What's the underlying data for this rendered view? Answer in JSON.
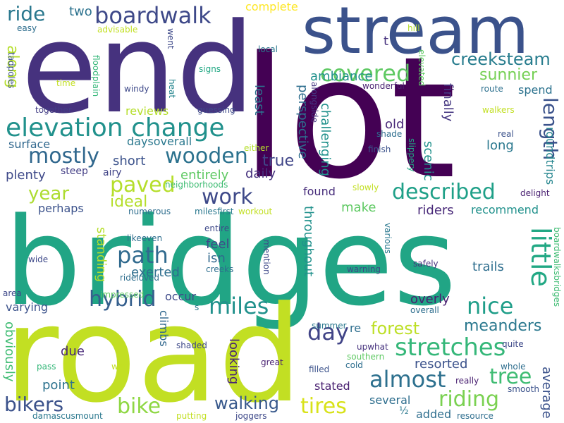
{
  "palette": {
    "c1": "#440154",
    "c2": "#482173",
    "c3": "#433e85",
    "c4": "#38588c",
    "c5": "#2d708e",
    "c6": "#25858e",
    "c7": "#1e9b8a",
    "c8": "#2ab07f",
    "c9": "#52c569",
    "c10": "#86d549",
    "c11": "#c2df23",
    "c12": "#fde725"
  },
  "words": [
    {
      "text": "bridges",
      "color": "#21a585"
    },
    {
      "text": "lot",
      "color": "#440154"
    },
    {
      "text": "road",
      "color": "#c2df23"
    },
    {
      "text": "end",
      "color": "#46327e"
    },
    {
      "text": "stream",
      "color": "#3b528b"
    },
    {
      "text": "elevation change",
      "color": "#21918c"
    },
    {
      "text": "boardwalk",
      "color": "#3e4989"
    },
    {
      "text": "covered",
      "color": "#5ec962"
    },
    {
      "text": "mostly",
      "color": "#31688e"
    },
    {
      "text": "wooden",
      "color": "#2c728e"
    },
    {
      "text": "ride",
      "color": "#2a788e"
    },
    {
      "text": "creeksteam",
      "color": "#287d8e"
    },
    {
      "text": "sunnier",
      "color": "#75d054"
    },
    {
      "text": "length",
      "color": "#3b528b"
    },
    {
      "text": "year",
      "color": "#addc30"
    },
    {
      "text": "paved",
      "color": "#b5de2b"
    },
    {
      "text": "work",
      "color": "#3e4989"
    },
    {
      "text": "described",
      "color": "#1fa088"
    },
    {
      "text": "ideal",
      "color": "#b5de2b"
    },
    {
      "text": "path",
      "color": "#306a8e"
    },
    {
      "text": "hybrid",
      "color": "#355f8d"
    },
    {
      "text": "miles",
      "color": "#21918c"
    },
    {
      "text": "nice",
      "color": "#1f9e89"
    },
    {
      "text": "little",
      "color": "#22a884"
    },
    {
      "text": "day",
      "color": "#414487"
    },
    {
      "text": "almost",
      "color": "#2d708e"
    },
    {
      "text": "stretches",
      "color": "#35b779"
    },
    {
      "text": "tree",
      "color": "#3fbc73"
    },
    {
      "text": "riding",
      "color": "#7ad151"
    },
    {
      "text": "tires",
      "color": "#d8e219"
    },
    {
      "text": "bike",
      "color": "#8fd744"
    },
    {
      "text": "bikers",
      "color": "#3b528b"
    },
    {
      "text": "walking",
      "color": "#38598c"
    },
    {
      "text": "forest",
      "color": "#bddf26"
    },
    {
      "text": "meanders",
      "color": "#2a788e"
    },
    {
      "text": "two",
      "color": "#2c728e"
    },
    {
      "text": "complete",
      "color": "#fde725"
    },
    {
      "text": "along",
      "color": "#b5de2b"
    },
    {
      "text": "true",
      "color": "#404688"
    },
    {
      "text": "ambiance",
      "color": "#21918c"
    },
    {
      "text": "daily",
      "color": "#46327e"
    },
    {
      "text": "least",
      "color": "#2c728e"
    },
    {
      "text": "perspective",
      "color": "#2e6e8e"
    },
    {
      "text": "challenging",
      "color": "#21918c"
    },
    {
      "text": "finally",
      "color": "#453781"
    },
    {
      "text": "scenic",
      "color": "#21918c"
    },
    {
      "text": "old",
      "color": "#482878"
    },
    {
      "text": "spend",
      "color": "#2c728e"
    },
    {
      "text": "long",
      "color": "#2a788e"
    },
    {
      "text": "roundtrips",
      "color": "#25858e"
    },
    {
      "text": "reviews",
      "color": "#b5de2b"
    },
    {
      "text": "daysoverall",
      "color": "#2a788e"
    },
    {
      "text": "surface",
      "color": "#31688e"
    },
    {
      "text": "short",
      "color": "#3b528b"
    },
    {
      "text": "entirely",
      "color": "#5ec962"
    },
    {
      "text": "plenty",
      "color": "#3e4989"
    },
    {
      "text": "steep",
      "color": "#433e85"
    },
    {
      "text": "airy",
      "color": "#414487"
    },
    {
      "text": "found",
      "color": "#472d7b"
    },
    {
      "text": "make",
      "color": "#5ec962"
    },
    {
      "text": "riders",
      "color": "#482878"
    },
    {
      "text": "recommend",
      "color": "#21918c"
    },
    {
      "text": "perhaps",
      "color": "#3b528b"
    },
    {
      "text": "exerted",
      "color": "#2e6e8e"
    },
    {
      "text": "standing",
      "color": "#b5de2b"
    },
    {
      "text": "feel",
      "color": "#3e4989"
    },
    {
      "text": "isn",
      "color": "#31688e"
    },
    {
      "text": "throughout",
      "color": "#21918c"
    },
    {
      "text": "overly",
      "color": "#481f70"
    },
    {
      "text": "trails",
      "color": "#2e6e8e"
    },
    {
      "text": "occur",
      "color": "#3e4989"
    },
    {
      "text": "varying",
      "color": "#3b528b"
    },
    {
      "text": "looking",
      "color": "#482475"
    },
    {
      "text": "re",
      "color": "#2e6e8e"
    },
    {
      "text": "obviously",
      "color": "#3fbc73"
    },
    {
      "text": "due",
      "color": "#482878"
    },
    {
      "text": "climbs",
      "color": "#31688e"
    },
    {
      "text": "point",
      "color": "#2c728e"
    },
    {
      "text": "stated",
      "color": "#481f70"
    },
    {
      "text": "resorted",
      "color": "#3b528b"
    },
    {
      "text": "several",
      "color": "#2e6e8e"
    },
    {
      "text": "average",
      "color": "#3b528b"
    },
    {
      "text": "added",
      "color": "#2e6e8e"
    },
    {
      "text": "easy",
      "color": "#2e6e8e"
    },
    {
      "text": "advisable",
      "color": "#c2df23"
    },
    {
      "text": "went",
      "color": "#3e4989"
    },
    {
      "text": "local",
      "color": "#2a788e"
    },
    {
      "text": "hill",
      "color": "#b5de2b"
    },
    {
      "text": "elevated",
      "color": "#5ec962"
    },
    {
      "text": "t",
      "color": "#46327e"
    },
    {
      "text": "tadpoles",
      "color": "#3b528b"
    },
    {
      "text": "time",
      "color": "#c2df23"
    },
    {
      "text": "floodplain",
      "color": "#35b779"
    },
    {
      "text": "windy",
      "color": "#3e4989"
    },
    {
      "text": "heat",
      "color": "#25858e"
    },
    {
      "text": "signs",
      "color": "#22a884"
    },
    {
      "text": "alongside",
      "color": "#453781"
    },
    {
      "text": "wonderful",
      "color": "#481f70"
    },
    {
      "text": "route",
      "color": "#2d708e"
    },
    {
      "text": "together",
      "color": "#433e85"
    },
    {
      "text": "guessing",
      "color": "#3e4989"
    },
    {
      "text": "walkers",
      "color": "#c2df23"
    },
    {
      "text": "real",
      "color": "#3b528b"
    },
    {
      "text": "shade",
      "color": "#2e6e8e"
    },
    {
      "text": "either",
      "color": "#b5de2b"
    },
    {
      "text": "finish",
      "color": "#3b528b"
    },
    {
      "text": "slippery",
      "color": "#22a884"
    },
    {
      "text": "neighborhoods",
      "color": "#3fbc73"
    },
    {
      "text": "slowly",
      "color": "#c2df23"
    },
    {
      "text": "delight",
      "color": "#481f70"
    },
    {
      "text": "numerous",
      "color": "#2e6e8e"
    },
    {
      "text": "milesfirst",
      "color": "#2a788e"
    },
    {
      "text": "workout",
      "color": "#c2df23"
    },
    {
      "text": "likeeven",
      "color": "#2e6e8e"
    },
    {
      "text": "entire",
      "color": "#3e4989"
    },
    {
      "text": "creeks",
      "color": "#2e6e8e"
    },
    {
      "text": "mention",
      "color": "#3e4989"
    },
    {
      "text": "various",
      "color": "#2a788e"
    },
    {
      "text": "wide",
      "color": "#3e4989"
    },
    {
      "text": "rideloved",
      "color": "#2e6e8e"
    },
    {
      "text": "warning",
      "color": "#3e4989"
    },
    {
      "text": "safely",
      "color": "#46327e"
    },
    {
      "text": "boardwalksbridges",
      "color": "#3fbc73"
    },
    {
      "text": "area",
      "color": "#3e4989"
    },
    {
      "text": "impressed",
      "color": "#5ec962"
    },
    {
      "text": "s",
      "color": "#2a788e"
    },
    {
      "text": "overall",
      "color": "#2e6e8e"
    },
    {
      "text": "summer",
      "color": "#2a788e"
    },
    {
      "text": "upwhat",
      "color": "#46327e"
    },
    {
      "text": "shaded",
      "color": "#3e4989"
    },
    {
      "text": "pass",
      "color": "#35b779"
    },
    {
      "text": "wet",
      "color": "#c2df23"
    },
    {
      "text": "great",
      "color": "#481f70"
    },
    {
      "text": "filled",
      "color": "#3b528b"
    },
    {
      "text": "southern",
      "color": "#5ec962"
    },
    {
      "text": "cold",
      "color": "#2e6e8e"
    },
    {
      "text": "whole",
      "color": "#2e6e8e"
    },
    {
      "text": "quite",
      "color": "#3e4989"
    },
    {
      "text": "really",
      "color": "#481f70"
    },
    {
      "text": "smooth",
      "color": "#3b528b"
    },
    {
      "text": "damascusmount",
      "color": "#2a788e"
    },
    {
      "text": "putting",
      "color": "#c2df23"
    },
    {
      "text": "joggers",
      "color": "#3e4989"
    },
    {
      "text": "½",
      "color": "#2a788e"
    },
    {
      "text": "resource",
      "color": "#2e6e8e"
    }
  ]
}
